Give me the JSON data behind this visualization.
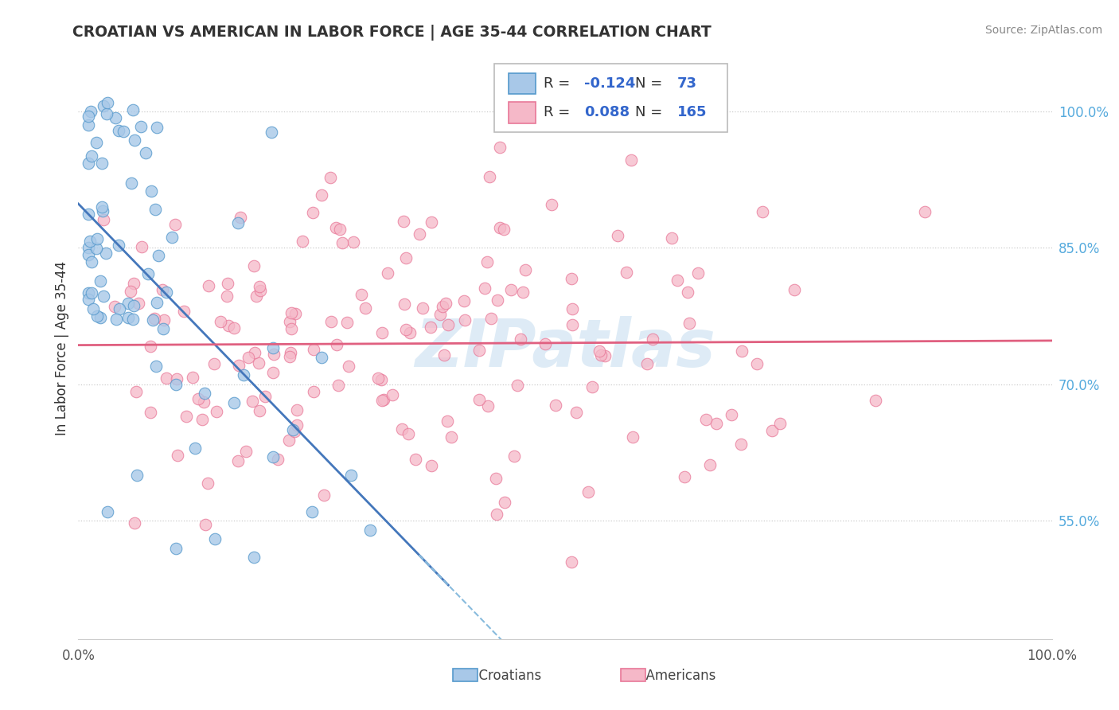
{
  "title": "CROATIAN VS AMERICAN IN LABOR FORCE | AGE 35-44 CORRELATION CHART",
  "source": "Source: ZipAtlas.com",
  "ylabel": "In Labor Force | Age 35-44",
  "xlim": [
    0.0,
    1.0
  ],
  "ylim": [
    0.42,
    1.06
  ],
  "y_ticks_right": [
    0.55,
    0.7,
    0.85,
    1.0
  ],
  "y_tick_labels_right": [
    "55.0%",
    "70.0%",
    "85.0%",
    "100.0%"
  ],
  "legend_r_croatian": "-0.124",
  "legend_n_croatian": "73",
  "legend_r_american": "0.088",
  "legend_n_american": "165",
  "croatian_fill": "#a8c8e8",
  "croatian_edge": "#5599cc",
  "american_fill": "#f5b8c8",
  "american_edge": "#e87898",
  "trendline_croatian_solid": "#4477bb",
  "trendline_american": "#e06080",
  "trendline_croatian_dashed": "#88bbdd",
  "grid_color": "#cccccc",
  "watermark_color": "#c8dff0",
  "right_tick_color": "#55aadd",
  "title_color": "#333333",
  "text_color": "#333333",
  "value_color": "#3366cc",
  "bottom_label_color": "#444444"
}
